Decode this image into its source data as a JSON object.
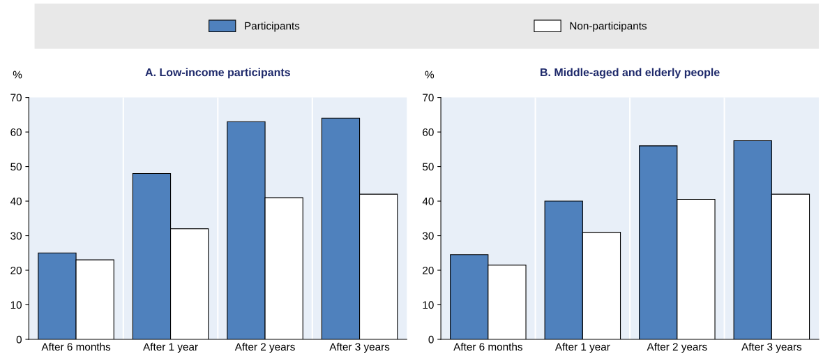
{
  "chart_data": [
    {
      "type": "bar",
      "title": "A. Low-income participants",
      "ylabel": "%",
      "categories": [
        "After 6 months",
        "After 1 year",
        "After 2 years",
        "After 3 years"
      ],
      "series": [
        {
          "name": "Participants",
          "color": "#4f81bd",
          "values": [
            25,
            48,
            63,
            64
          ]
        },
        {
          "name": "Non-participants",
          "color": "#ffffff",
          "values": [
            23,
            32,
            41,
            42
          ]
        }
      ],
      "ylim": [
        0,
        70
      ],
      "yticks": [
        0,
        10,
        20,
        30,
        40,
        50,
        60,
        70
      ],
      "legend": "top"
    },
    {
      "type": "bar",
      "title": "B. Middle-aged and elderly people",
      "ylabel": "%",
      "categories": [
        "After 6 months",
        "After 1 year",
        "After 2 years",
        "After 3 years"
      ],
      "series": [
        {
          "color": "#4f81bd",
          "values": [
            24.5,
            40,
            56,
            57.5
          ]
        },
        {
          "color": "#ffffff",
          "values": [
            21.5,
            31,
            40.5,
            42
          ]
        }
      ],
      "ylim": [
        0,
        70
      ],
      "yticks": [
        0,
        10,
        20,
        30,
        40,
        50,
        60,
        70
      ]
    }
  ]
}
